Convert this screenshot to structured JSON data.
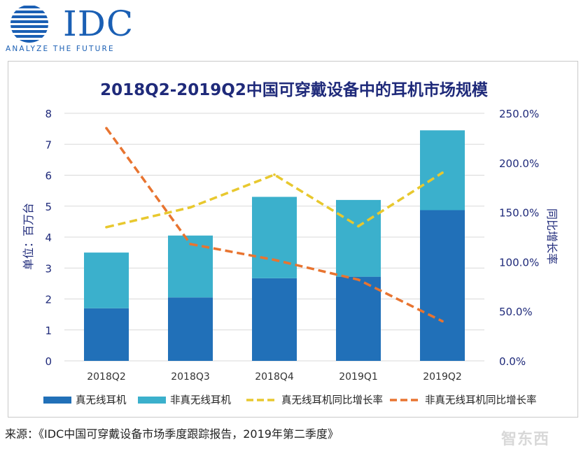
{
  "header": {
    "logo_text": "IDC",
    "tagline": "ANALYZE THE FUTURE"
  },
  "footer": {
    "source": "来源：《IDC中国可穿戴设备市场季度跟踪报告，2019年第二季度》",
    "watermark": "智东西"
  },
  "colors": {
    "brand": "#1a5fb4",
    "true_wireless": "#2170b8",
    "non_true_wireless": "#3bb0cc",
    "true_wireless_growth": "#e8c82e",
    "non_true_wireless_growth": "#e87430"
  },
  "chart_data": {
    "type": "bar",
    "stacked": true,
    "title": "2018Q2-2019Q2中国可穿戴设备中的耳机市场规模",
    "categories": [
      "2018Q2",
      "2018Q3",
      "2018Q4",
      "2019Q1",
      "2019Q2"
    ],
    "ylabel": "单位：百万台",
    "y2label": "同比增长率",
    "ylim": [
      0,
      8
    ],
    "y_ticks": [
      "0",
      "1",
      "2",
      "3",
      "4",
      "5",
      "6",
      "7",
      "8"
    ],
    "y2lim": [
      0,
      250
    ],
    "y2_ticks": [
      "0.0%",
      "50.0%",
      "100.0%",
      "150.0%",
      "200.0%",
      "250.0%"
    ],
    "series": [
      {
        "name": "真无线耳机",
        "kind": "bar",
        "values": [
          1.7,
          2.05,
          2.67,
          2.72,
          4.87
        ]
      },
      {
        "name": "非真无线耳机",
        "kind": "bar",
        "values": [
          1.8,
          2.0,
          2.63,
          2.48,
          2.58
        ]
      },
      {
        "name": "真无线耳机同比增长率",
        "kind": "line",
        "axis": "right",
        "values": [
          135,
          155,
          188,
          136,
          190
        ]
      },
      {
        "name": "非真无线耳机同比增长率",
        "kind": "line",
        "axis": "right",
        "values": [
          235,
          118,
          102,
          82,
          40
        ]
      }
    ]
  }
}
